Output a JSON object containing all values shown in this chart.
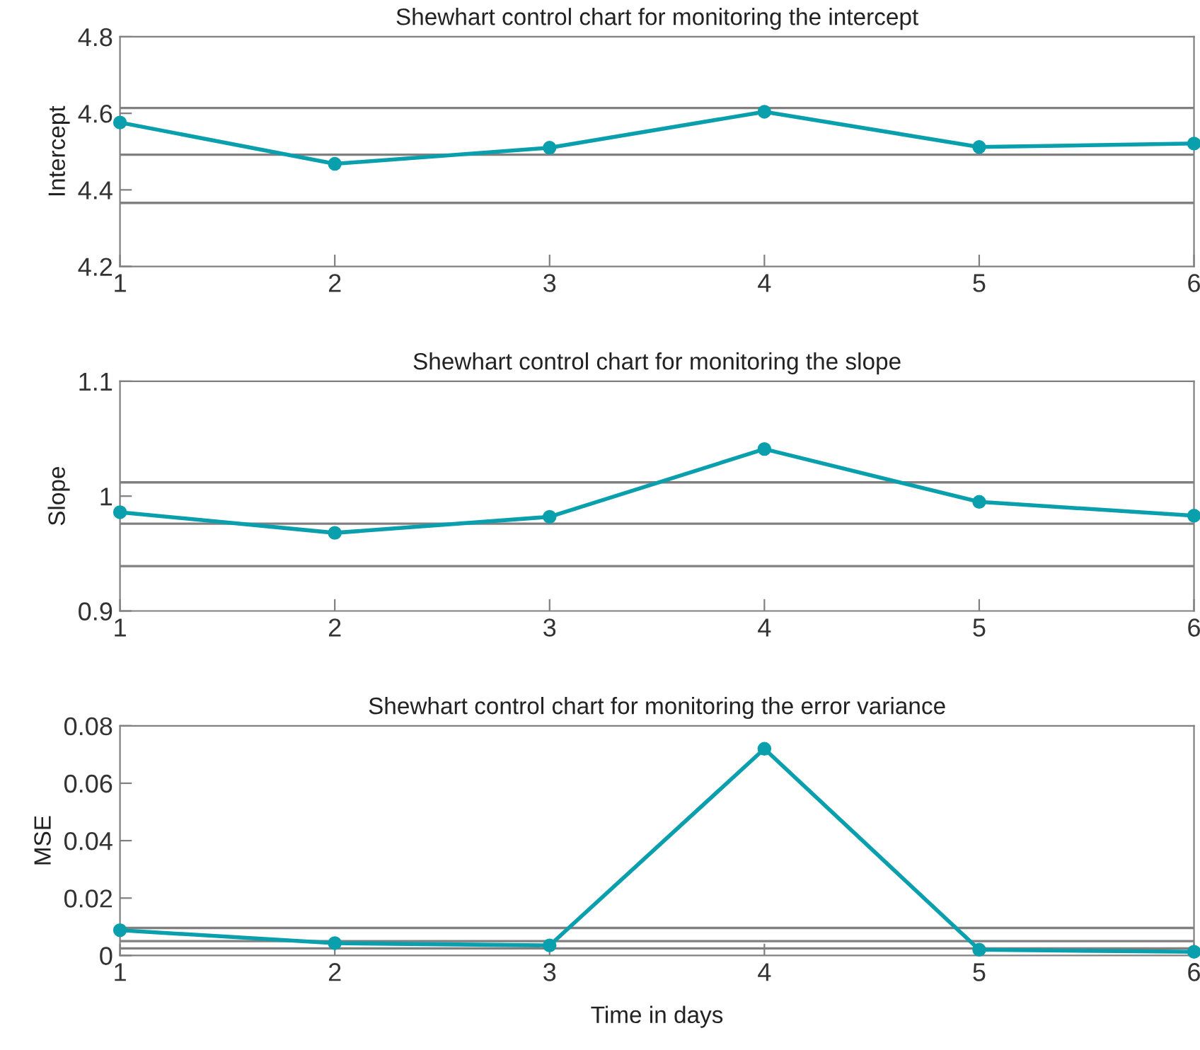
{
  "chart_data": [
    {
      "type": "line",
      "title": "Shewhart control chart for monitoring the intercept",
      "ylabel": "Intercept",
      "x": [
        1,
        2,
        3,
        4,
        5,
        6
      ],
      "series": [
        {
          "color": "#0a9fad",
          "values": [
            4.576,
            4.468,
            4.51,
            4.604,
            4.512,
            4.521
          ]
        }
      ],
      "marker": "circle",
      "line_style": "solid",
      "xlim": [
        1,
        6
      ],
      "xticks": [
        1,
        2,
        3,
        4,
        5,
        6
      ],
      "ylim": [
        4.2,
        4.8
      ],
      "yticks": [
        4.2,
        4.4,
        4.6,
        4.8
      ],
      "grid": false,
      "legend": false,
      "ref_lines": [
        {
          "axis": "y",
          "value": 4.614,
          "color": "#808080"
        },
        {
          "axis": "y",
          "value": 4.492,
          "color": "#808080"
        },
        {
          "axis": "y",
          "value": 4.366,
          "color": "#808080"
        }
      ]
    },
    {
      "type": "line",
      "title": "Shewhart control chart for monitoring the slope",
      "ylabel": "Slope",
      "x": [
        1,
        2,
        3,
        4,
        5,
        6
      ],
      "series": [
        {
          "color": "#0a9fad",
          "values": [
            0.986,
            0.968,
            0.982,
            1.041,
            0.995,
            0.983
          ]
        }
      ],
      "marker": "circle",
      "line_style": "solid",
      "xlim": [
        1,
        6
      ],
      "xticks": [
        1,
        2,
        3,
        4,
        5,
        6
      ],
      "ylim": [
        0.9,
        1.1
      ],
      "yticks": [
        0.9,
        1,
        1.1
      ],
      "grid": false,
      "legend": false,
      "ref_lines": [
        {
          "axis": "y",
          "value": 1.012,
          "color": "#808080"
        },
        {
          "axis": "y",
          "value": 0.976,
          "color": "#808080"
        },
        {
          "axis": "y",
          "value": 0.939,
          "color": "#808080"
        }
      ]
    },
    {
      "type": "line",
      "title": "Shewhart control chart for monitoring the error variance",
      "ylabel": "MSE",
      "xlabel": "Time in days",
      "x": [
        1,
        2,
        3,
        4,
        5,
        6
      ],
      "series": [
        {
          "color": "#0a9fad",
          "values": [
            0.0088,
            0.0043,
            0.0035,
            0.072,
            0.002,
            0.0013
          ]
        }
      ],
      "marker": "circle",
      "line_style": "solid",
      "xlim": [
        1,
        6
      ],
      "xticks": [
        1,
        2,
        3,
        4,
        5,
        6
      ],
      "ylim": [
        0,
        0.08
      ],
      "yticks": [
        0,
        0.02,
        0.04,
        0.06,
        0.08
      ],
      "grid": false,
      "legend": false,
      "ref_lines": [
        {
          "axis": "y",
          "value": 0.0096,
          "color": "#808080"
        },
        {
          "axis": "y",
          "value": 0.005,
          "color": "#808080"
        },
        {
          "axis": "y",
          "value": 0.0025,
          "color": "#808080"
        }
      ]
    }
  ]
}
